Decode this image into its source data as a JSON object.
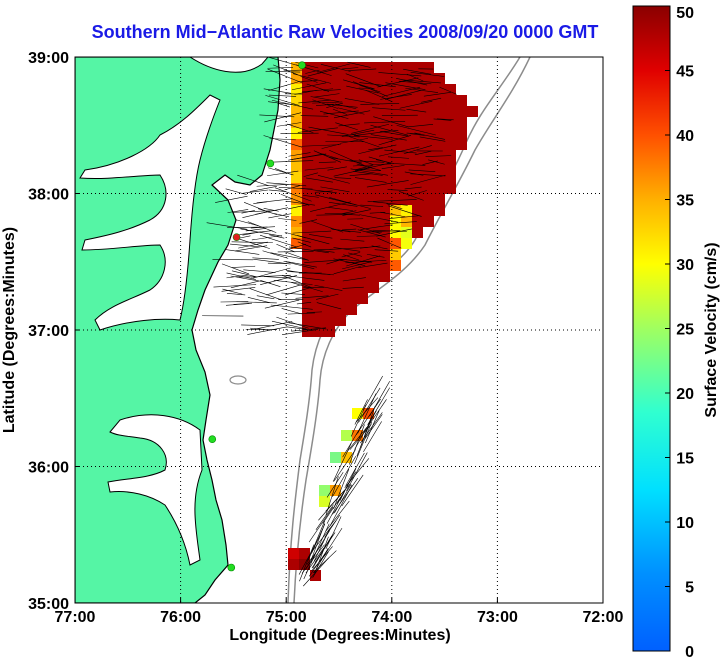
{
  "title": "Southern Mid−Atlantic Raw Velocities 2008/09/20 0000 GMT",
  "x_axis": {
    "label": "Longitude (Degrees:Minutes)",
    "ticks": [
      "77:00",
      "76:00",
      "75:00",
      "74:00",
      "73:00",
      "72:00"
    ]
  },
  "y_axis": {
    "label": "Latitude (Degrees:Minutes)",
    "ticks": [
      "39:00",
      "38:00",
      "37:00",
      "36:00",
      "35:00"
    ]
  },
  "colorbar": {
    "label": "Surface Velocity (cm/s)",
    "ticks": [
      "50",
      "45",
      "40",
      "35",
      "30",
      "25",
      "20",
      "15",
      "10",
      "5",
      "0"
    ],
    "range": [
      0,
      50
    ],
    "colormap": "jet"
  },
  "colors": {
    "land": "#55f5a5",
    "ocean": "#ffffff",
    "coastline": "#000000",
    "bathymetry": "#8c8c8c",
    "grid": "#000000",
    "title": "#1a1ae6",
    "radar_station": "#22dd22"
  },
  "map": {
    "lon_range": [
      -77,
      -72
    ],
    "lat_range": [
      35,
      39
    ],
    "gridlines": "dotted"
  },
  "stations": [
    {
      "lon": -74.85,
      "lat": 38.94
    },
    {
      "lon": -75.15,
      "lat": 38.22
    },
    {
      "lon": -75.47,
      "lat": 37.68
    },
    {
      "lon": -75.7,
      "lat": 36.2
    },
    {
      "lon": -75.52,
      "lat": 35.26
    }
  ]
}
